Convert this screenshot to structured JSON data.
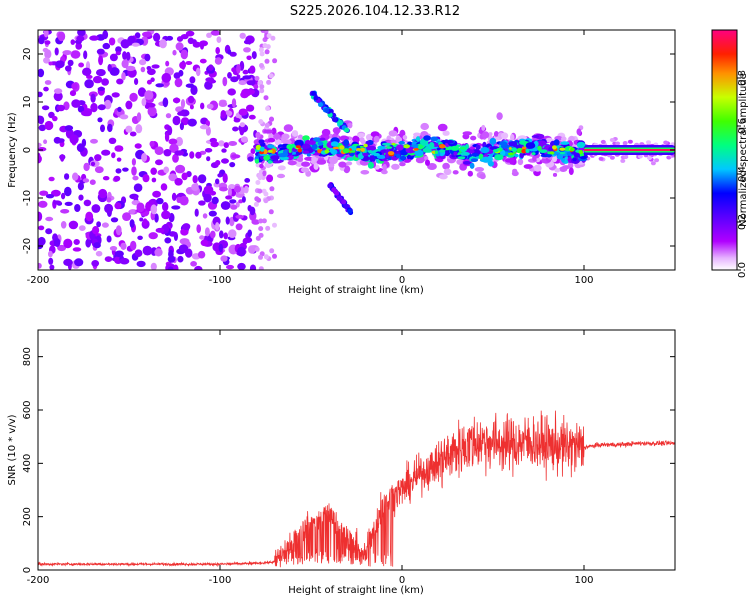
{
  "title": "S225.2026.104.12.33.R12",
  "chart_data": [
    {
      "type": "heatmap",
      "name": "spectrogram",
      "xlabel": "Height of straight line (km)",
      "ylabel": "Frequency (Hz)",
      "xlim": [
        -200,
        150
      ],
      "ylim": [
        -25,
        25
      ],
      "xticks": [
        -200,
        -100,
        0,
        100
      ],
      "yticks": [
        -20,
        -10,
        0,
        10,
        20
      ],
      "colorbar": {
        "label": "Normalized spectral amplitude",
        "range": [
          0.0,
          1.0
        ],
        "ticks": [
          0.0,
          0.2,
          0.4,
          0.6,
          0.8
        ],
        "colormap": [
          "#ffffff",
          "#c800ff",
          "#6a00ff",
          "#0000ff",
          "#00e0ff",
          "#00ff60",
          "#c8ff00",
          "#ff8000",
          "#ff0000",
          "#ff0080"
        ]
      },
      "features": {
        "noise_region_x": [
          -200,
          -80
        ],
        "tone_segment": {
          "x": [
            -80,
            150
          ],
          "frequency": 0
        },
        "branch_upper": {
          "x": [
            -50,
            -30
          ],
          "frequency": [
            12,
            4
          ]
        },
        "branch_lower": {
          "x": [
            -40,
            -28
          ],
          "frequency": [
            -7,
            -13
          ]
        },
        "strong_line": {
          "x": [
            100,
            150
          ],
          "frequency": 0
        }
      }
    },
    {
      "type": "line",
      "name": "snr",
      "xlabel": "Height of straight line (km)",
      "ylabel": "SNR (10 * v/v)",
      "xlim": [
        -200,
        150
      ],
      "ylim": [
        0,
        900
      ],
      "xticks": [
        -200,
        -100,
        0,
        100
      ],
      "yticks": [
        0,
        200,
        400,
        600,
        800
      ],
      "color": "#ee3030",
      "series": [
        {
          "name": "SNR",
          "x": [
            -200,
            -150,
            -100,
            -80,
            -70,
            -60,
            -50,
            -40,
            -30,
            -20,
            -10,
            0,
            10,
            20,
            30,
            40,
            50,
            60,
            70,
            80,
            90,
            100,
            110,
            120,
            130,
            140,
            150
          ],
          "y": [
            22,
            22,
            22,
            25,
            30,
            110,
            180,
            220,
            110,
            60,
            260,
            300,
            360,
            400,
            450,
            480,
            480,
            470,
            480,
            470,
            460,
            460,
            470,
            470,
            475,
            475,
            475
          ]
        }
      ]
    }
  ]
}
